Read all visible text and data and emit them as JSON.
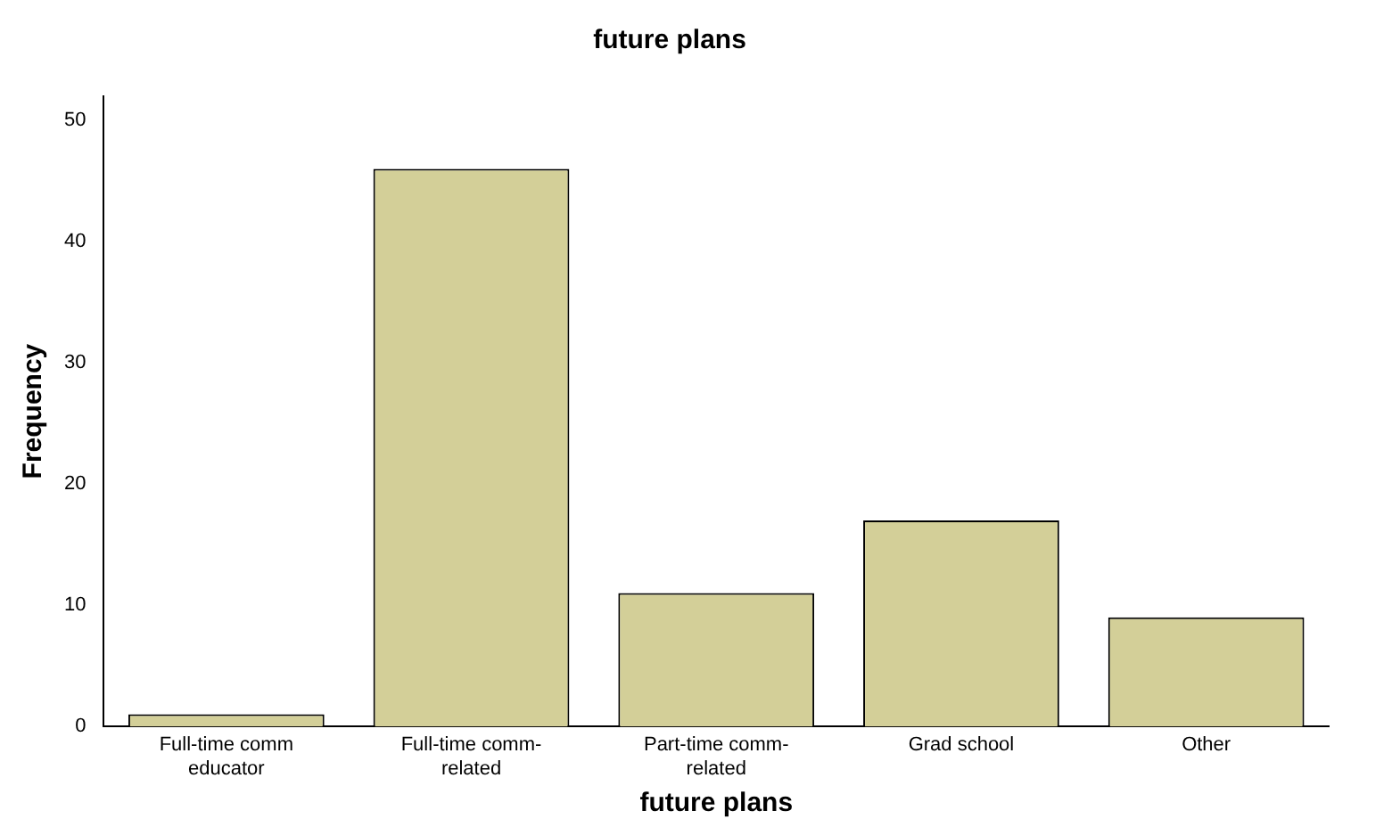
{
  "chart_data": {
    "type": "bar",
    "title": "future plans",
    "xlabel": "future plans",
    "ylabel": "Frequency",
    "categories": [
      "Full-time comm educator",
      "Full-time comm-related",
      "Part-time comm-related",
      "Grad school",
      "Other"
    ],
    "values": [
      1,
      46,
      11,
      17,
      9
    ],
    "color": "#d3cf98",
    "ylim": [
      0,
      52
    ],
    "yticks": [
      0,
      10,
      20,
      30,
      40,
      50
    ],
    "grid": false
  }
}
